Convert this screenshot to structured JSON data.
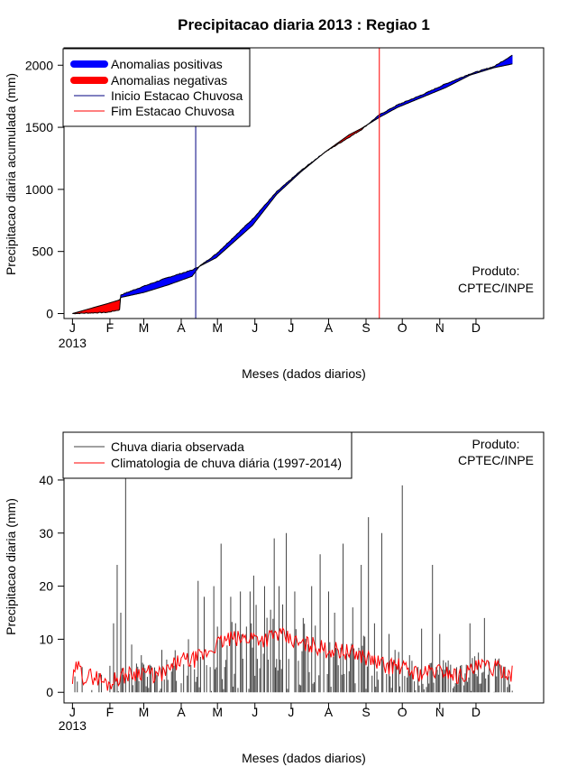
{
  "chart_data": [
    {
      "type": "area",
      "title": "Precipitacao diaria 2013 : Regiao 1",
      "xlabel": "Meses (dados diarios)",
      "ylabel": "Precipitacao diaria acumulada (mm)",
      "x_ticks": [
        "J",
        "F",
        "M",
        "A",
        "M",
        "J",
        "J",
        "A",
        "S",
        "O",
        "N",
        "D"
      ],
      "x_tick_days": [
        1,
        32,
        60,
        91,
        121,
        152,
        182,
        213,
        244,
        274,
        305,
        335
      ],
      "year_label": "2013",
      "xlim": [
        -6,
        391
      ],
      "ylim": [
        -40,
        2140
      ],
      "y_ticks": [
        0,
        500,
        1000,
        1500,
        2000
      ],
      "legend": {
        "position": "top-left",
        "entries": [
          {
            "label": "Anomalias positivas",
            "color": "#0000ff",
            "style": "thick"
          },
          {
            "label": "Anomalias negativas",
            "color": "#ff0000",
            "style": "thick"
          },
          {
            "label": "Inicio Estacao Chuvosa",
            "color": "#000080",
            "style": "thin"
          },
          {
            "label": "Fim Estacao Chuvosa",
            "color": "#ff0000",
            "style": "thin"
          }
        ]
      },
      "annotation": {
        "line1": "Produto:",
        "line2": "CPTEC/INPE",
        "position": "bottom-right"
      },
      "rainy_season_start_day": 103,
      "rainy_season_end_day": 255,
      "observed_cumulative_keypoints": [
        [
          1,
          0
        ],
        [
          30,
          10
        ],
        [
          40,
          30
        ],
        [
          41,
          150
        ],
        [
          60,
          220
        ],
        [
          80,
          290
        ],
        [
          100,
          350
        ],
        [
          106,
          380
        ],
        [
          120,
          480
        ],
        [
          150,
          760
        ],
        [
          170,
          980
        ],
        [
          190,
          1150
        ],
        [
          210,
          1300
        ],
        [
          230,
          1420
        ],
        [
          240,
          1480
        ],
        [
          255,
          1600
        ],
        [
          270,
          1680
        ],
        [
          290,
          1760
        ],
        [
          310,
          1850
        ],
        [
          330,
          1930
        ],
        [
          350,
          1990
        ],
        [
          365,
          2080
        ]
      ],
      "climatology_cumulative_keypoints": [
        [
          1,
          0
        ],
        [
          30,
          80
        ],
        [
          40,
          110
        ],
        [
          41,
          130
        ],
        [
          60,
          170
        ],
        [
          80,
          230
        ],
        [
          100,
          300
        ],
        [
          106,
          380
        ],
        [
          120,
          450
        ],
        [
          150,
          710
        ],
        [
          170,
          960
        ],
        [
          190,
          1140
        ],
        [
          210,
          1300
        ],
        [
          230,
          1440
        ],
        [
          240,
          1490
        ],
        [
          255,
          1580
        ],
        [
          270,
          1660
        ],
        [
          290,
          1740
        ],
        [
          310,
          1820
        ],
        [
          330,
          1920
        ],
        [
          350,
          1980
        ],
        [
          365,
          2010
        ]
      ]
    },
    {
      "type": "bar",
      "xlabel": "Meses (dados diarios)",
      "ylabel": "Precipitacao diaria (mm)",
      "x_ticks": [
        "J",
        "F",
        "M",
        "A",
        "M",
        "J",
        "J",
        "A",
        "S",
        "O",
        "N",
        "D"
      ],
      "x_tick_days": [
        1,
        32,
        60,
        91,
        121,
        152,
        182,
        213,
        244,
        274,
        305,
        335
      ],
      "year_label": "2013",
      "xlim": [
        -6,
        391
      ],
      "ylim": [
        -2,
        49
      ],
      "y_ticks": [
        0,
        10,
        20,
        30,
        40
      ],
      "legend": {
        "position": "top-left",
        "entries": [
          {
            "label": "Chuva diaria observada",
            "color": "#404040"
          },
          {
            "label": "Climatologia de chuva diária (1997-2014)",
            "color": "#ff0000"
          }
        ]
      },
      "annotation": {
        "line1": "Produto:",
        "line2": "CPTEC/INPE",
        "position": "top-right"
      },
      "observed_peaks": [
        [
          32,
          5
        ],
        [
          35,
          13
        ],
        [
          38,
          24
        ],
        [
          41,
          15
        ],
        [
          45,
          41
        ],
        [
          50,
          9
        ],
        [
          58,
          7
        ],
        [
          66,
          5
        ],
        [
          75,
          8
        ],
        [
          85,
          5
        ],
        [
          97,
          10
        ],
        [
          105,
          21
        ],
        [
          110,
          18
        ],
        [
          118,
          20
        ],
        [
          124,
          28
        ],
        [
          132,
          18
        ],
        [
          140,
          19
        ],
        [
          148,
          19
        ],
        [
          151,
          22
        ],
        [
          160,
          20
        ],
        [
          168,
          29
        ],
        [
          172,
          20
        ],
        [
          178,
          30
        ],
        [
          185,
          19
        ],
        [
          192,
          14
        ],
        [
          199,
          20
        ],
        [
          206,
          26
        ],
        [
          213,
          19
        ],
        [
          218,
          15
        ],
        [
          225,
          28
        ],
        [
          233,
          16
        ],
        [
          240,
          24
        ],
        [
          246,
          33
        ],
        [
          251,
          13
        ],
        [
          257,
          30
        ],
        [
          263,
          11
        ],
        [
          268,
          8
        ],
        [
          274,
          39
        ],
        [
          280,
          7
        ],
        [
          290,
          12
        ],
        [
          299,
          24
        ],
        [
          305,
          11
        ],
        [
          312,
          6
        ],
        [
          322,
          5
        ],
        [
          330,
          13
        ],
        [
          342,
          14
        ],
        [
          352,
          3
        ],
        [
          362,
          3
        ]
      ],
      "climatology_keypoints": [
        [
          1,
          2
        ],
        [
          5,
          5
        ],
        [
          10,
          3
        ],
        [
          20,
          3
        ],
        [
          30,
          1.5
        ],
        [
          40,
          3
        ],
        [
          50,
          3.5
        ],
        [
          60,
          4
        ],
        [
          70,
          3
        ],
        [
          80,
          4
        ],
        [
          90,
          6
        ],
        [
          100,
          6
        ],
        [
          110,
          7
        ],
        [
          120,
          9
        ],
        [
          130,
          10
        ],
        [
          140,
          10
        ],
        [
          150,
          10.5
        ],
        [
          160,
          10
        ],
        [
          170,
          11
        ],
        [
          180,
          10
        ],
        [
          190,
          9
        ],
        [
          200,
          9
        ],
        [
          210,
          8
        ],
        [
          220,
          8
        ],
        [
          230,
          7.5
        ],
        [
          240,
          7
        ],
        [
          250,
          6
        ],
        [
          260,
          5
        ],
        [
          270,
          5
        ],
        [
          280,
          4
        ],
        [
          290,
          3.5
        ],
        [
          300,
          4
        ],
        [
          310,
          4
        ],
        [
          320,
          3
        ],
        [
          330,
          4
        ],
        [
          340,
          5
        ],
        [
          350,
          4.5
        ],
        [
          360,
          4
        ],
        [
          365,
          3.5
        ]
      ]
    }
  ]
}
